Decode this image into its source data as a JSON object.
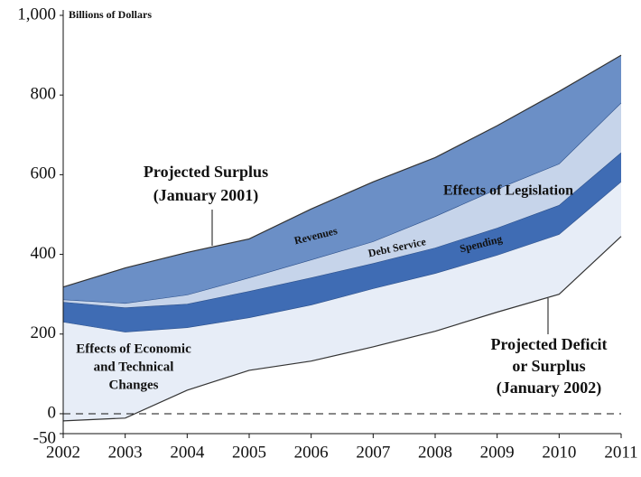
{
  "chart_data": {
    "type": "area-bands",
    "y_label": "Billions of Dollars",
    "x": [
      2002,
      2003,
      2004,
      2005,
      2006,
      2007,
      2008,
      2009,
      2010,
      2011
    ],
    "xlim": [
      2002,
      2011
    ],
    "xticks": [
      2002,
      2003,
      2004,
      2005,
      2006,
      2007,
      2008,
      2009,
      2010,
      2011
    ],
    "ylim": [
      -50,
      1000
    ],
    "yticks": [
      -50,
      0,
      200,
      400,
      600,
      800,
      {
        "value": 1000,
        "label": "1,000"
      }
    ],
    "zero_line": true,
    "series": [
      {
        "color": "#6b8fc6",
        "values": [
          318,
          366,
          405,
          439,
          514,
          582,
          643,
          723,
          809,
          900
        ]
      },
      {
        "color": "#c6d4ea",
        "values": [
          286,
          277,
          298,
          341,
          386,
          432,
          495,
          564,
          627,
          780
        ]
      },
      {
        "color": "#3f6cb4",
        "values": [
          280,
          266,
          275,
          307,
          341,
          377,
          416,
          466,
          523,
          655
        ]
      },
      {
        "color": "#e7edf7",
        "values": [
          230,
          205,
          216,
          241,
          273,
          314,
          352,
          398,
          450,
          582
        ]
      },
      {
        "values": [
          -18,
          -11,
          59,
          109,
          132,
          168,
          207,
          255,
          300,
          445
        ]
      }
    ],
    "annotations": [
      [
        "Projected Surplus",
        "(January 2001)"
      ],
      [
        "Effects of Legislation"
      ],
      [
        "Revenues"
      ],
      [
        "Debt Service"
      ],
      [
        "Spending"
      ],
      [
        "Effects of Economic",
        "and Technical",
        "Changes"
      ],
      [
        "Projected Deficit",
        "or Surplus",
        "(January 2002)"
      ]
    ]
  }
}
